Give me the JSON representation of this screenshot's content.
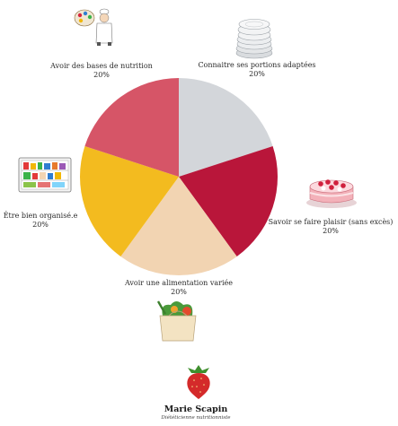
{
  "chart_data": {
    "type": "pie",
    "title": "",
    "slices": [
      {
        "label": "Connaitre ses portions adaptées",
        "value": 20,
        "percent_label": "20%",
        "color": "#d3d6da"
      },
      {
        "label": "Savoir se faire plaisir (sans excès)",
        "value": 20,
        "percent_label": "20%",
        "color": "#b9163a"
      },
      {
        "label": "Avoir une alimentation variée",
        "value": 20,
        "percent_label": "20%",
        "color": "#f2d4b2"
      },
      {
        "label": "Être bien organisé.e",
        "value": 20,
        "percent_label": "20%",
        "color": "#f3bb1f"
      },
      {
        "label": "Avoir des bases de nutrition",
        "value": 20,
        "percent_label": "20%",
        "color": "#d65567"
      }
    ],
    "start_angle_deg": 0,
    "direction": "clockwise",
    "legend": "none"
  },
  "icons": [
    "stacked-plates-icon",
    "strawberry-cake-icon",
    "grocery-bag-icon",
    "organized-fridge-icon",
    "chef-with-palette-icon",
    "strawberry-logo-icon"
  ],
  "branding": {
    "name": "Marie Scapin",
    "subtitle": "Diététicienne nutritionniste"
  }
}
